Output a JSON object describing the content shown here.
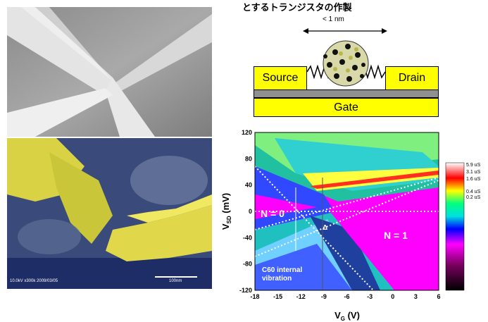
{
  "heading": "とするトランジスタの作製",
  "schematic": {
    "gap_label": "< 1 nm",
    "source_label": "Source",
    "drain_label": "Drain",
    "gate_label": "Gate"
  },
  "sem_image": {
    "caption": "10.0kV x300k 2009/03/05",
    "scale_label": "100nm"
  },
  "colors": {
    "electrode_yellow": "#ffff00",
    "oxide_gray": "#909090",
    "sem_bottom_bg": "#3a4a7a"
  },
  "chart_data": {
    "type": "heatmap",
    "xlabel": "V_G (V)",
    "ylabel": "V_SD (mV)",
    "xlim": [
      -18,
      6
    ],
    "ylim": [
      -120,
      120
    ],
    "xticks": [
      -18,
      -15,
      -12,
      -9,
      -6,
      -3,
      0,
      3,
      6
    ],
    "yticks": [
      120,
      80,
      40,
      0,
      -40,
      -80,
      -120
    ],
    "annotations": [
      "N = 0",
      "N = 1",
      "Δ",
      "C60 internal",
      "vibration"
    ],
    "colorbar": {
      "labels": [
        "5.9 uS",
        "3.1 uS",
        "1.6 uS",
        "0.4 uS",
        "0.2 uS"
      ],
      "values_uS": [
        5.9,
        3.1,
        1.6,
        0.4,
        0.2
      ]
    }
  }
}
